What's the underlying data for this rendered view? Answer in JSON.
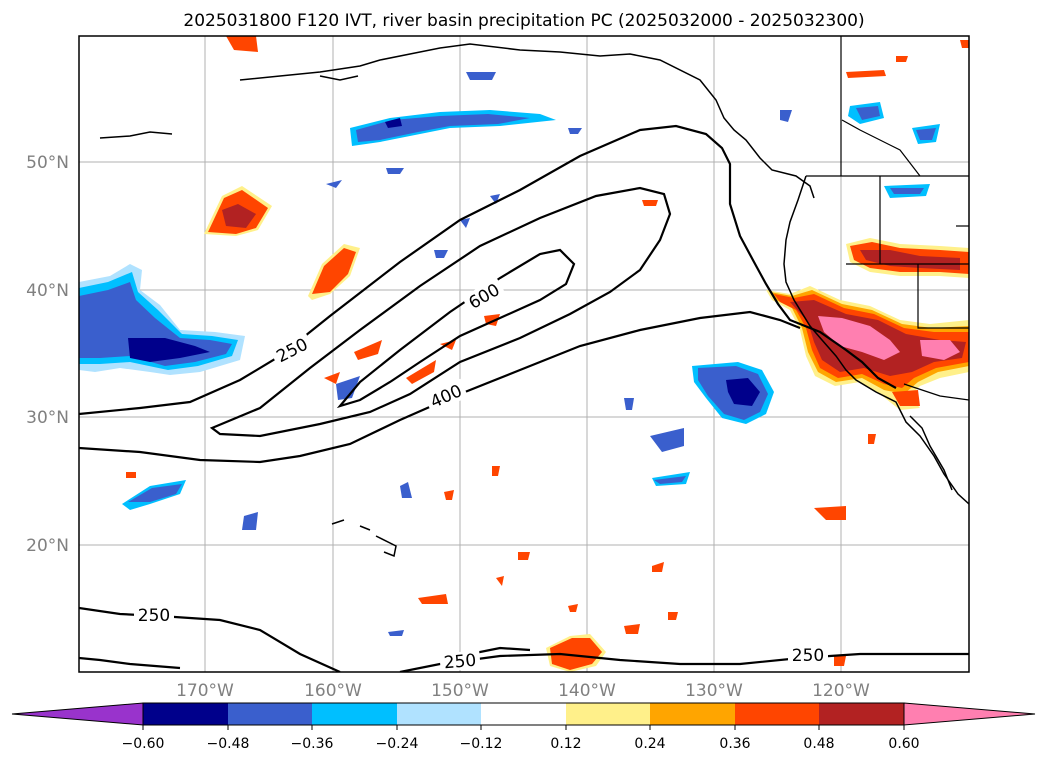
{
  "title": "2025031800 F120 IVT, river basin precipitation PC (2025032000 - 2025032300)",
  "lat_labels": [
    "50°N",
    "40°N",
    "30°N",
    "20°N"
  ],
  "lon_labels": [
    "170°W",
    "160°W",
    "150°W",
    "140°W",
    "130°W",
    "120°W"
  ],
  "contour_labels": [
    "250",
    "600",
    "400",
    "250",
    "250",
    "250"
  ],
  "colorbar": {
    "ticks": [
      "−0.60",
      "−0.48",
      "−0.36",
      "−0.24",
      "−0.12",
      "0.12",
      "0.24",
      "0.36",
      "0.48",
      "0.60"
    ],
    "colors": [
      "#9933cc",
      "#00008b",
      "#3a5fcd",
      "#00bfff",
      "#b0e2ff",
      "#ffffff",
      "#fff08a",
      "#ffa500",
      "#ff4500",
      "#b22222",
      "#ff7fb0"
    ]
  }
}
